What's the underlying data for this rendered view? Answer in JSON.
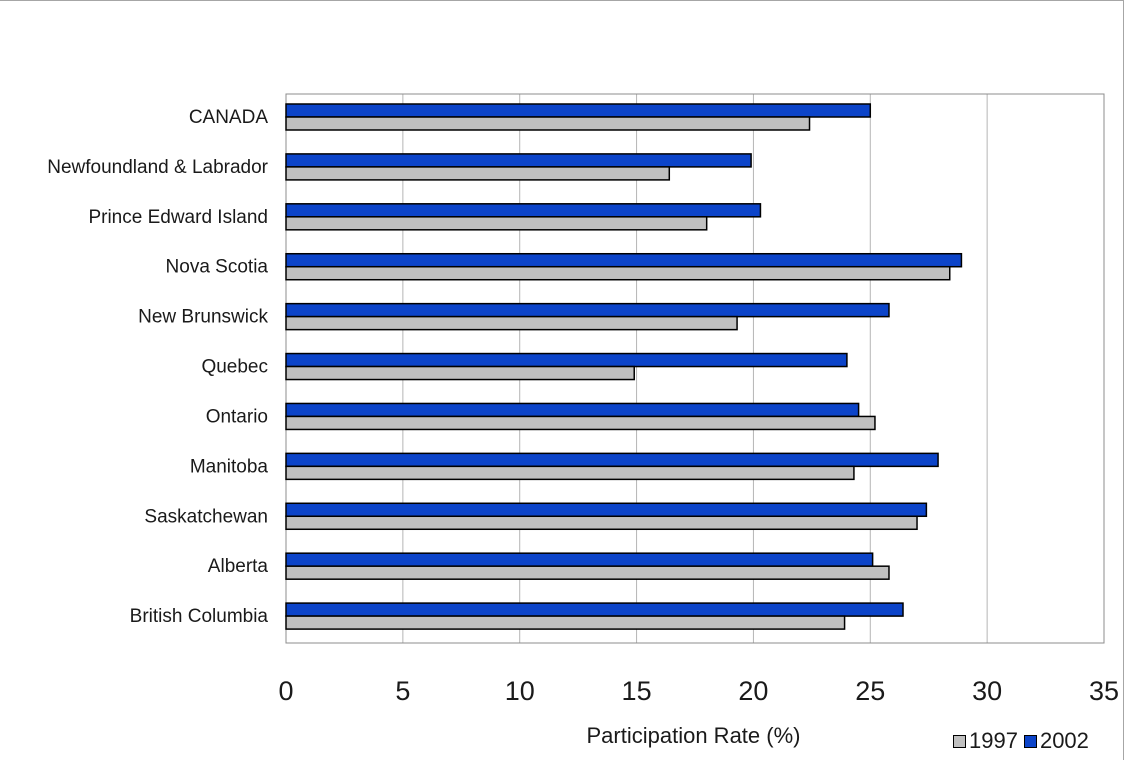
{
  "chart_data": {
    "type": "bar",
    "orientation": "horizontal",
    "categories": [
      "CANADA",
      "Newfoundland & Labrador",
      "Prince Edward Island",
      "Nova Scotia",
      "New Brunswick",
      "Quebec",
      "Ontario",
      "Manitoba",
      "Saskatchewan",
      "Alberta",
      "British Columbia"
    ],
    "series": [
      {
        "name": "1997",
        "color": "#c0c0c0",
        "values": [
          22.4,
          16.4,
          18.0,
          28.4,
          19.3,
          14.9,
          25.2,
          24.3,
          27.0,
          25.8,
          23.9
        ]
      },
      {
        "name": "2002",
        "color": "#0c44c9",
        "values": [
          25.0,
          19.9,
          20.3,
          28.9,
          25.8,
          24.0,
          24.5,
          27.9,
          27.4,
          25.1,
          26.4
        ]
      }
    ],
    "xlabel": "Participation Rate (%)",
    "ylabel": "",
    "xlim": [
      0,
      35
    ],
    "xticks": [
      0,
      5,
      10,
      15,
      20,
      25,
      30,
      35
    ],
    "grid": "vertical",
    "legend": "bottom-right"
  }
}
